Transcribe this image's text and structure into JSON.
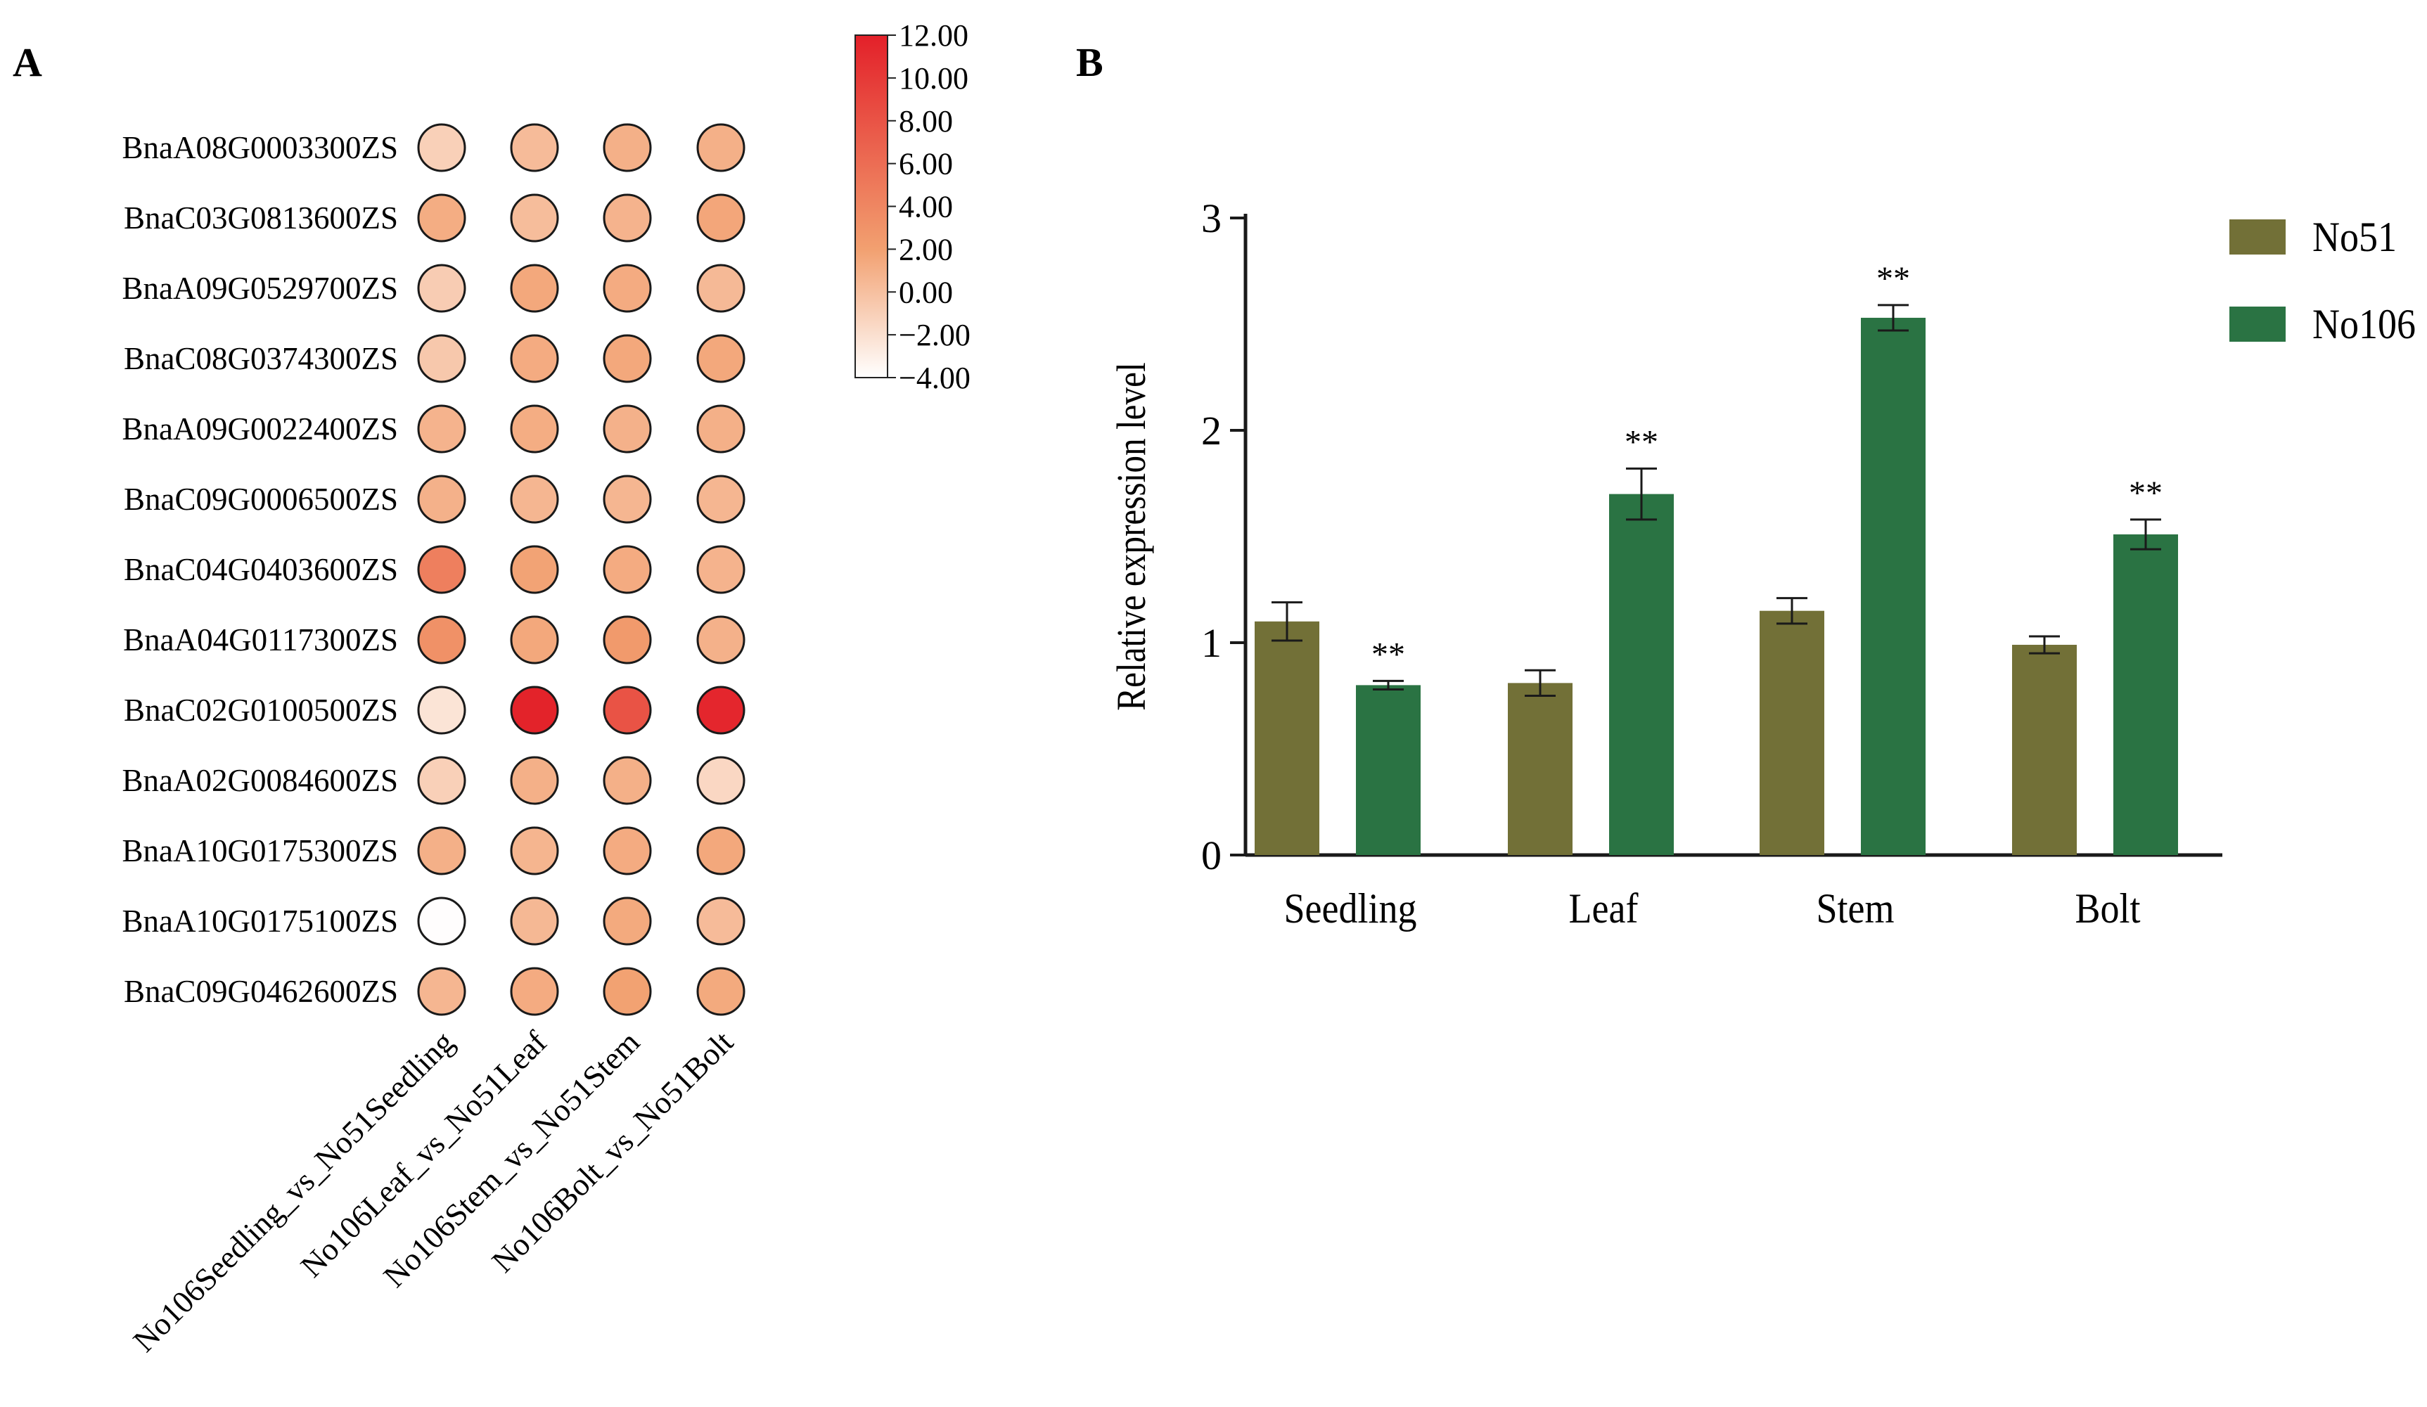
{
  "figure": {
    "panel_a_label": "A",
    "panel_b_label": "B"
  },
  "colors": {
    "no51": "#727037",
    "no106": "#2a7343",
    "scale_low": "#ffffff",
    "scale_mid": "#f2a070",
    "scale_high": "#e32029"
  },
  "chart_data": [
    {
      "type": "heatmap",
      "title": "",
      "rows": [
        "BnaA08G0003300ZS",
        "BnaC03G0813600ZS",
        "BnaA09G0529700ZS",
        "BnaC08G0374300ZS",
        "BnaA09G0022400ZS",
        "BnaC09G0006500ZS",
        "BnaC04G0403600ZS",
        "BnaA04G0117300ZS",
        "BnaC02G0100500ZS",
        "BnaA02G0084600ZS",
        "BnaA10G0175300ZS",
        "BnaA10G0175100ZS",
        "BnaC09G0462600ZS"
      ],
      "columns": [
        "No106Seedling_vs_No51Seedling",
        "No106Leaf_vs_No51Leaf",
        "No106Stem_vs_No51Stem",
        "No106Bolt_vs_No51Bolt"
      ],
      "values": [
        [
          -1.0,
          0.3,
          1.0,
          1.0
        ],
        [
          1.2,
          0.2,
          0.8,
          1.6
        ],
        [
          -0.8,
          1.5,
          1.3,
          0.4
        ],
        [
          -0.5,
          1.3,
          1.5,
          1.5
        ],
        [
          0.8,
          1.2,
          0.9,
          1.0
        ],
        [
          0.9,
          0.6,
          0.6,
          0.6
        ],
        [
          4.6,
          1.8,
          1.3,
          0.8
        ],
        [
          3.2,
          1.5,
          2.5,
          0.9
        ],
        [
          -2.3,
          11.8,
          8.0,
          11.5
        ],
        [
          -1.0,
          1.0,
          1.0,
          -1.5
        ],
        [
          1.0,
          0.7,
          1.3,
          1.5
        ],
        [
          -3.9,
          0.5,
          1.4,
          0.3
        ],
        [
          0.6,
          1.3,
          1.9,
          1.4
        ]
      ],
      "scale": {
        "min": -4.0,
        "max": 12.0,
        "ticks": [
          "12.00",
          "10.00",
          "8.00",
          "6.00",
          "4.00",
          "2.00",
          "0.00",
          "−2.00",
          "−4.00"
        ]
      }
    },
    {
      "type": "bar",
      "title": "",
      "xlabel": "",
      "ylabel": "Relative expression level",
      "ylim": [
        0,
        3
      ],
      "yticks": [
        "0",
        "1",
        "2",
        "3"
      ],
      "categories": [
        "Seedling",
        "Leaf",
        "Stem",
        "Bolt"
      ],
      "series": [
        {
          "name": "No51",
          "values": [
            1.1,
            0.81,
            1.15,
            0.99
          ],
          "errors": [
            0.09,
            0.06,
            0.06,
            0.04
          ],
          "significance": [
            "",
            "",
            "",
            ""
          ]
        },
        {
          "name": "No106",
          "values": [
            0.8,
            1.7,
            2.53,
            1.51
          ],
          "errors": [
            0.02,
            0.12,
            0.06,
            0.07
          ],
          "significance": [
            "**",
            "**",
            "**",
            "**"
          ]
        }
      ],
      "legend_position": "top-right"
    }
  ]
}
